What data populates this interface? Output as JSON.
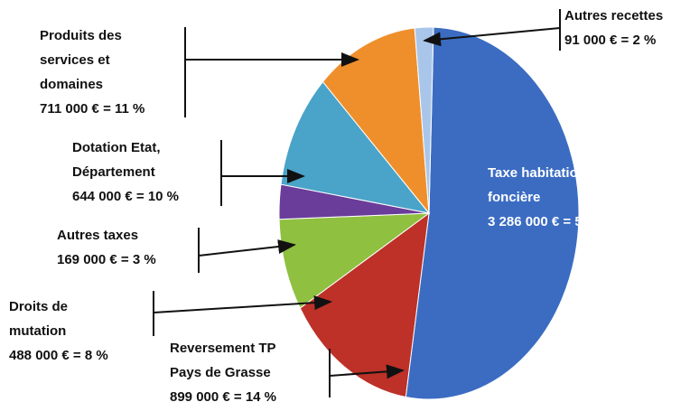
{
  "chart_data": {
    "type": "pie",
    "categories": [
      "Taxe habitation et foncière",
      "Reversement TP Pays de Grasse",
      "Droits de mutation",
      "Autres taxes",
      "Dotation Etat, Département",
      "Produits des services et domaines",
      "Autres recettes"
    ],
    "values": [
      52,
      14,
      8,
      3,
      10,
      11,
      2
    ],
    "value_labels": [
      "3 286 000 € = 52 %",
      "899 000 € = 14 %",
      "488 000 € = 8 %",
      "169 000 € = 3 %",
      "644 000 € = 10 %",
      "711 000 € = 11 %",
      "91 000 € = 2 %"
    ],
    "colors": [
      "#3b6cc2",
      "#bd3128",
      "#8fc040",
      "#6a3d9a",
      "#4aa3c8",
      "#ef8f2b",
      "#a9c6ea"
    ]
  }
}
